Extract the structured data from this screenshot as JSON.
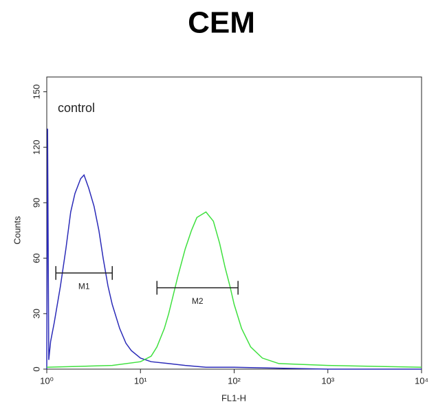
{
  "chart_data": {
    "type": "histogram-line",
    "title": "CEM",
    "xlabel": "FL1-H",
    "ylabel": "Counts",
    "log_x": true,
    "xlim": [
      1,
      10000
    ],
    "xticks": [
      {
        "value": 1,
        "label": "10⁰"
      },
      {
        "value": 10,
        "label": "10¹"
      },
      {
        "value": 100,
        "label": "10²"
      },
      {
        "value": 1000,
        "label": "10³"
      },
      {
        "value": 10000,
        "label": "10⁴"
      }
    ],
    "ylim": [
      0,
      158
    ],
    "yticks": [
      0,
      30,
      60,
      90,
      120,
      150
    ],
    "series": [
      {
        "name": "control",
        "color": "#2a2ab8",
        "x": [
          1.0,
          1.02,
          1.05,
          1.1,
          1.2,
          1.4,
          1.6,
          1.8,
          2.0,
          2.3,
          2.5,
          2.8,
          3.2,
          3.6,
          4.0,
          4.5,
          5.0,
          6.0,
          7.0,
          8.0,
          10,
          13,
          20,
          30,
          50,
          100,
          1000,
          10000
        ],
        "values": [
          0,
          130,
          5,
          15,
          25,
          45,
          65,
          85,
          95,
          103,
          105,
          98,
          88,
          75,
          60,
          45,
          35,
          22,
          14,
          10,
          6,
          4,
          3,
          2,
          1,
          1,
          0,
          0
        ]
      },
      {
        "color": "#3ee03e",
        "x": [
          1,
          5,
          10,
          13,
          15,
          18,
          20,
          25,
          30,
          35,
          40,
          50,
          60,
          70,
          80,
          90,
          100,
          120,
          150,
          200,
          300,
          1000,
          10000
        ],
        "values": [
          1,
          2,
          4,
          7,
          12,
          22,
          30,
          50,
          65,
          75,
          82,
          85,
          80,
          68,
          55,
          45,
          35,
          22,
          12,
          6,
          3,
          2,
          1
        ]
      }
    ],
    "markers": [
      {
        "label": "M1",
        "x": [
          1.25,
          5.0
        ],
        "y": 52
      },
      {
        "label": "M2",
        "x": [
          15,
          110
        ],
        "y": 44
      }
    ]
  }
}
